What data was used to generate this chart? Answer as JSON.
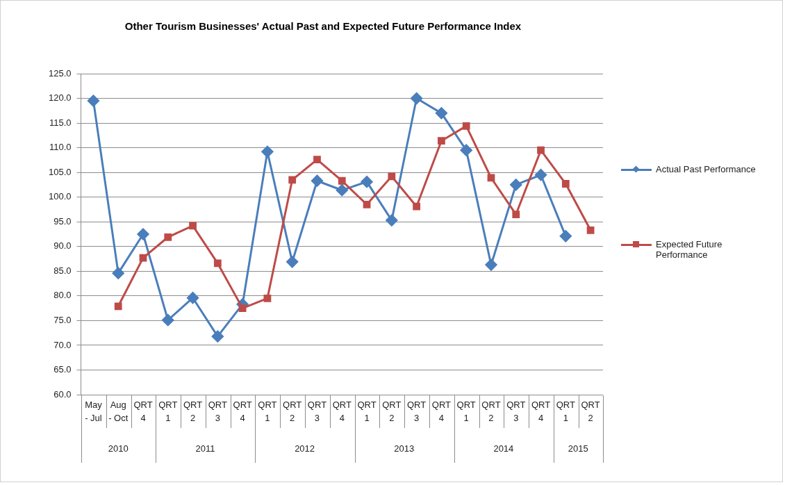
{
  "chart_data": {
    "type": "line",
    "title": "Other Tourism Businesses' Actual Past and Expected Future Performance Index",
    "categories": [
      "May - Jul",
      "Aug - Oct",
      "QRT 4",
      "QRT 1",
      "QRT 2",
      "QRT 3",
      "QRT 4",
      "QRT 1",
      "QRT 2",
      "QRT 3",
      "QRT 4",
      "QRT 1",
      "QRT 2",
      "QRT 3",
      "QRT 4",
      "QRT 1",
      "QRT 2",
      "QRT 3",
      "QRT 4",
      "QRT 1",
      "QRT 2"
    ],
    "series": [
      {
        "name": "Actual Past Performance",
        "color": "#4a7ebb",
        "marker": "diamond",
        "values": [
          119.5,
          84.6,
          92.5,
          75.1,
          79.6,
          71.8,
          78.3,
          109.2,
          86.9,
          103.3,
          101.4,
          103.1,
          95.3,
          120.0,
          117.0,
          109.5,
          86.3,
          102.5,
          104.5,
          92.1,
          null
        ]
      },
      {
        "name": "Expected Future Performance",
        "color": "#be4b48",
        "marker": "square",
        "values": [
          null,
          77.9,
          87.7,
          91.9,
          94.2,
          86.6,
          77.5,
          79.5,
          103.5,
          107.6,
          103.3,
          98.5,
          104.2,
          98.1,
          111.4,
          114.4,
          103.9,
          96.5,
          109.5,
          102.7,
          93.3
        ]
      }
    ],
    "annotations": [
      "2010",
      "2011",
      "2012",
      "2013",
      "2014",
      "2015"
    ],
    "ylim": [
      60,
      125
    ],
    "yticks": [
      {
        "value": 60,
        "label": "60.0"
      },
      {
        "value": 65,
        "label": "65.0"
      },
      {
        "value": 70,
        "label": "70.0"
      },
      {
        "value": 75,
        "label": "75.0"
      },
      {
        "value": 80,
        "label": "80.0"
      },
      {
        "value": 85,
        "label": "85.0"
      },
      {
        "value": 90,
        "label": "90.0"
      },
      {
        "value": 95,
        "label": "95.0"
      },
      {
        "value": 100,
        "label": "100.0"
      },
      {
        "value": 105,
        "label": "105.0"
      },
      {
        "value": 110,
        "label": "110.0"
      },
      {
        "value": 115,
        "label": "115.0"
      },
      {
        "value": 120,
        "label": "120.0"
      },
      {
        "value": 125,
        "label": "125.0"
      }
    ],
    "grid": "y",
    "legend": "right",
    "line_style": "solid"
  }
}
